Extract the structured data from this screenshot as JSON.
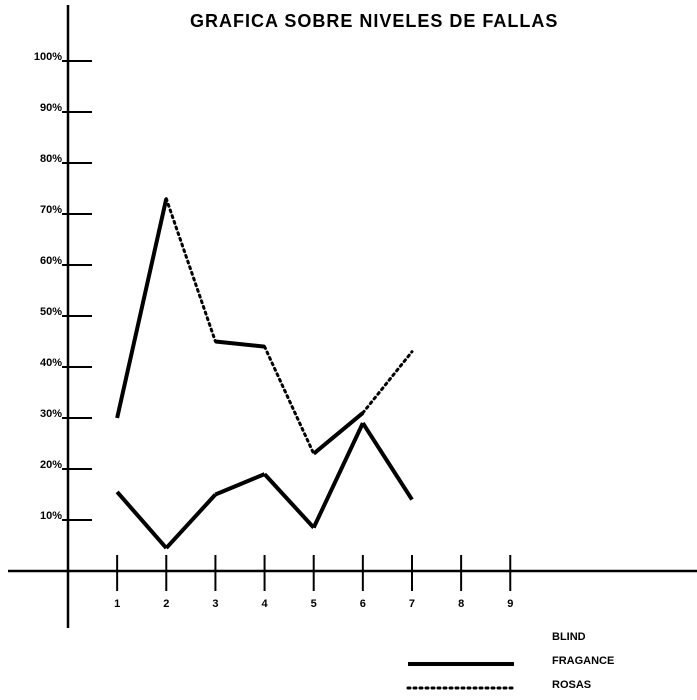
{
  "chart_data": {
    "type": "line",
    "title": "GRAFICA SOBRE NIVELES  DE  FALLAS",
    "x": [
      1,
      2,
      3,
      4,
      5,
      6,
      7
    ],
    "series": [
      {
        "color": "#000000",
        "values": [
          30,
          73,
          45,
          44,
          23,
          31,
          43
        ],
        "segment_styles": [
          "solid",
          "dotted",
          "solid",
          "dotted",
          "solid",
          "dotted"
        ]
      },
      {
        "color": "#000000",
        "values": [
          15.5,
          4.5,
          15,
          19,
          8.5,
          29,
          14
        ],
        "segment_styles": [
          "solid",
          "solid",
          "solid",
          "solid",
          "solid",
          "solid"
        ]
      }
    ],
    "xlim": [
      0,
      12.8
    ],
    "xticks": [
      1,
      2,
      3,
      4,
      5,
      6,
      7,
      8,
      9
    ],
    "ylim": [
      0,
      100
    ],
    "yticks": [
      {
        "value": 10,
        "label": "10%"
      },
      {
        "value": 20,
        "label": "20%"
      },
      {
        "value": 30,
        "label": "30%"
      },
      {
        "value": 40,
        "label": "40%"
      },
      {
        "value": 50,
        "label": "50%"
      },
      {
        "value": 60,
        "label": "60%"
      },
      {
        "value": 70,
        "label": "70%"
      },
      {
        "value": 80,
        "label": "80%"
      },
      {
        "value": 90,
        "label": "90%"
      },
      {
        "value": 100,
        "label": "100%"
      }
    ],
    "legend": [
      {
        "label": "BLIND",
        "style": "none"
      },
      {
        "label": "FRAGANCE",
        "style": "solid"
      },
      {
        "label": "ROSAS",
        "style": "dotted"
      }
    ]
  }
}
